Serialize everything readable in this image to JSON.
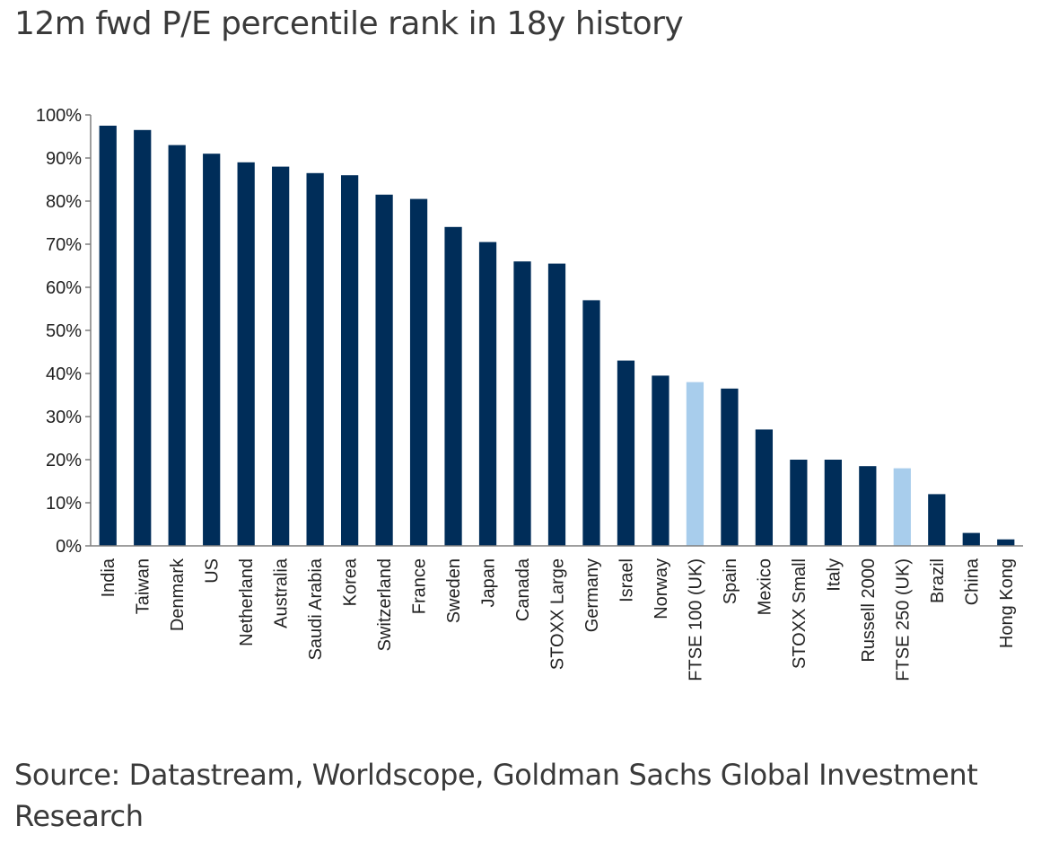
{
  "chart_data": {
    "type": "bar",
    "title": "12m fwd P/E percentile rank in 18y history",
    "source": "Source: Datastream, Worldscope, Goldman Sachs Global Investment Research",
    "categories": [
      "India",
      "Taiwan",
      "Denmark",
      "US",
      "Netherland",
      "Australia",
      "Saudi Arabia",
      "Korea",
      "Switzerland",
      "France",
      "Sweden",
      "Japan",
      "Canada",
      "STOXX Large",
      "Germany",
      "Israel",
      "Norway",
      "FTSE 100 (UK)",
      "Spain",
      "Mexico",
      "STOXX Small",
      "Italy",
      "Russell 2000",
      "FTSE 250 (UK)",
      "Brazil",
      "China",
      "Hong Kong"
    ],
    "values": [
      97.5,
      96.5,
      93,
      91,
      89,
      88,
      86.5,
      86,
      81.5,
      80.5,
      74,
      70.5,
      66,
      65.5,
      57,
      43,
      39.5,
      38,
      36.5,
      27,
      20,
      20,
      18.5,
      18,
      12,
      3,
      1.5
    ],
    "highlighted": [
      "FTSE 100 (UK)",
      "FTSE 250 (UK)"
    ],
    "colors": {
      "default": "#002d59",
      "highlight": "#a8cdec"
    },
    "ylim": [
      0,
      100
    ],
    "yticks": [
      "0%",
      "10%",
      "20%",
      "30%",
      "40%",
      "50%",
      "60%",
      "70%",
      "80%",
      "90%",
      "100%"
    ],
    "xlabel": "",
    "ylabel": "",
    "grid": false,
    "legend": "none"
  }
}
